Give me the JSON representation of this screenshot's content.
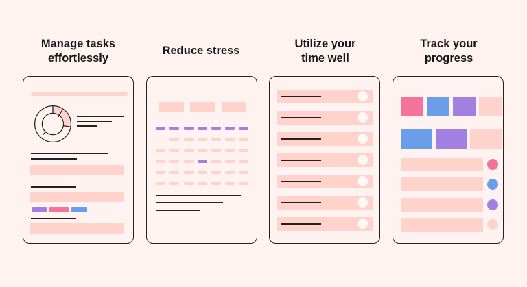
{
  "colors": {
    "background": "#fff3f1",
    "light_pink": "#ffd3cc",
    "hot_pink": "#f4739a",
    "blue": "#6a9ee9",
    "purple": "#a27fe0",
    "outline": "#222222"
  },
  "cards": [
    {
      "title_line1": "Manage tasks",
      "title_line2": "effortlessly",
      "illustration": "task-dashboard-with-donut-chart"
    },
    {
      "title_line1": "Reduce stress",
      "title_line2": "",
      "illustration": "calendar-grid"
    },
    {
      "title_line1": "Utilize your",
      "title_line2": "time well",
      "illustration": "checklist-with-toggles"
    },
    {
      "title_line1": "Track your",
      "title_line2": "progress",
      "illustration": "color-blocks-and-status-dots"
    }
  ]
}
